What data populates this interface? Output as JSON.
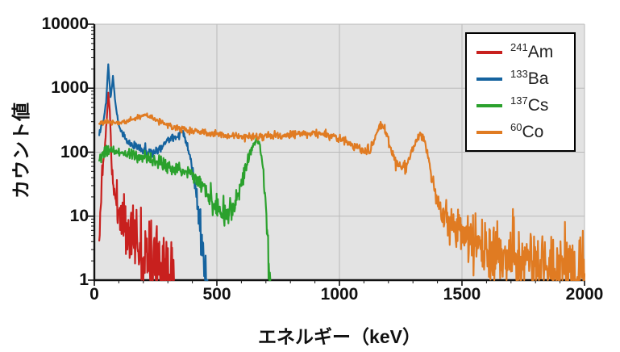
{
  "chart_data": {
    "type": "line",
    "title": "",
    "xlabel": "エネルギー（keV）",
    "ylabel": "カウント値",
    "xlim": [
      0,
      2000
    ],
    "ylim": [
      1,
      10000
    ],
    "yscale": "log",
    "xticks": [
      0,
      500,
      1000,
      1500,
      2000
    ],
    "yticks": [
      1,
      10,
      100,
      1000,
      10000
    ],
    "x_minor_step": 100,
    "grid": true,
    "plot_bg": "#e3e3e3",
    "grid_color": "#b9b9b9",
    "axis_color": "#111111",
    "legend_position": "top-right",
    "series": [
      {
        "name": "241Am",
        "mass": "241",
        "element": "Am",
        "color": "#c8201e",
        "seed": 11,
        "noise": 1.35,
        "step_kev": 2,
        "anchors": [
          [
            20,
            3
          ],
          [
            30,
            40
          ],
          [
            40,
            90
          ],
          [
            50,
            300
          ],
          [
            57,
            800
          ],
          [
            63,
            500
          ],
          [
            70,
            60
          ],
          [
            80,
            25
          ],
          [
            95,
            14
          ],
          [
            115,
            9
          ],
          [
            140,
            6
          ],
          [
            170,
            4.5
          ],
          [
            200,
            3.2
          ],
          [
            235,
            2.4
          ],
          [
            265,
            1.8
          ],
          [
            290,
            1.4
          ],
          [
            315,
            1.05
          ],
          [
            325,
            1.0
          ]
        ]
      },
      {
        "name": "133Ba",
        "mass": "133",
        "element": "Ba",
        "color": "#15639f",
        "seed": 22,
        "noise": 0.95,
        "step_kev": 2,
        "anchors": [
          [
            20,
            200
          ],
          [
            38,
            350
          ],
          [
            48,
            600
          ],
          [
            57,
            2400
          ],
          [
            66,
            700
          ],
          [
            76,
            1500
          ],
          [
            88,
            480
          ],
          [
            102,
            260
          ],
          [
            125,
            160
          ],
          [
            155,
            130
          ],
          [
            190,
            110
          ],
          [
            230,
            100
          ],
          [
            265,
            105
          ],
          [
            295,
            150
          ],
          [
            320,
            170
          ],
          [
            340,
            160
          ],
          [
            356,
            230
          ],
          [
            368,
            190
          ],
          [
            382,
            115
          ],
          [
            396,
            60
          ],
          [
            410,
            28
          ],
          [
            425,
            10
          ],
          [
            440,
            3.5
          ],
          [
            452,
            1.6
          ],
          [
            462,
            1.0
          ]
        ]
      },
      {
        "name": "137Cs",
        "mass": "137",
        "element": "Cs",
        "color": "#2ba12d",
        "seed": 33,
        "noise": 0.95,
        "step_kev": 2,
        "anchors": [
          [
            20,
            75
          ],
          [
            45,
            100
          ],
          [
            70,
            108
          ],
          [
            100,
            100
          ],
          [
            140,
            92
          ],
          [
            180,
            85
          ],
          [
            220,
            76
          ],
          [
            260,
            68
          ],
          [
            300,
            60
          ],
          [
            340,
            55
          ],
          [
            380,
            48
          ],
          [
            420,
            38
          ],
          [
            450,
            27
          ],
          [
            475,
            19
          ],
          [
            500,
            13
          ],
          [
            525,
            10.5
          ],
          [
            550,
            11
          ],
          [
            575,
            16
          ],
          [
            600,
            32
          ],
          [
            625,
            75
          ],
          [
            645,
            125
          ],
          [
            662,
            160
          ],
          [
            674,
            135
          ],
          [
            686,
            70
          ],
          [
            696,
            22
          ],
          [
            705,
            6
          ],
          [
            712,
            1.8
          ],
          [
            718,
            1.0
          ]
        ]
      },
      {
        "name": "60Co",
        "mass": "60",
        "element": "Co",
        "color": "#e07b22",
        "seed": 44,
        "noise": 0.9,
        "step_kev": 2,
        "anchors": [
          [
            20,
            280
          ],
          [
            55,
            300
          ],
          [
            90,
            285
          ],
          [
            130,
            300
          ],
          [
            165,
            330
          ],
          [
            195,
            370
          ],
          [
            215,
            380
          ],
          [
            240,
            340
          ],
          [
            270,
            300
          ],
          [
            310,
            260
          ],
          [
            350,
            235
          ],
          [
            400,
            215
          ],
          [
            450,
            200
          ],
          [
            500,
            190
          ],
          [
            550,
            182
          ],
          [
            600,
            178
          ],
          [
            650,
            176
          ],
          [
            700,
            178
          ],
          [
            750,
            182
          ],
          [
            800,
            188
          ],
          [
            850,
            194
          ],
          [
            900,
            198
          ],
          [
            930,
            195
          ],
          [
            960,
            185
          ],
          [
            990,
            168
          ],
          [
            1020,
            150
          ],
          [
            1050,
            132
          ],
          [
            1080,
            116
          ],
          [
            1105,
            104
          ],
          [
            1125,
            112
          ],
          [
            1145,
            170
          ],
          [
            1160,
            240
          ],
          [
            1173,
            270
          ],
          [
            1186,
            235
          ],
          [
            1200,
            150
          ],
          [
            1220,
            85
          ],
          [
            1240,
            58
          ],
          [
            1258,
            54
          ],
          [
            1275,
            66
          ],
          [
            1295,
            105
          ],
          [
            1315,
            160
          ],
          [
            1332,
            185
          ],
          [
            1345,
            160
          ],
          [
            1360,
            95
          ],
          [
            1375,
            45
          ],
          [
            1392,
            22
          ],
          [
            1410,
            13
          ],
          [
            1430,
            9
          ],
          [
            1455,
            7
          ],
          [
            1480,
            5.5
          ],
          [
            1510,
            4.5
          ],
          [
            1545,
            3.8
          ],
          [
            1580,
            3.2
          ],
          [
            1620,
            2.8
          ],
          [
            1660,
            2.4
          ],
          [
            1700,
            2.1
          ],
          [
            1740,
            1.9
          ],
          [
            1780,
            1.7
          ],
          [
            1820,
            1.6
          ],
          [
            1860,
            1.5
          ],
          [
            1900,
            1.4
          ],
          [
            1945,
            1.3
          ],
          [
            2000,
            1.25
          ]
        ]
      }
    ]
  }
}
